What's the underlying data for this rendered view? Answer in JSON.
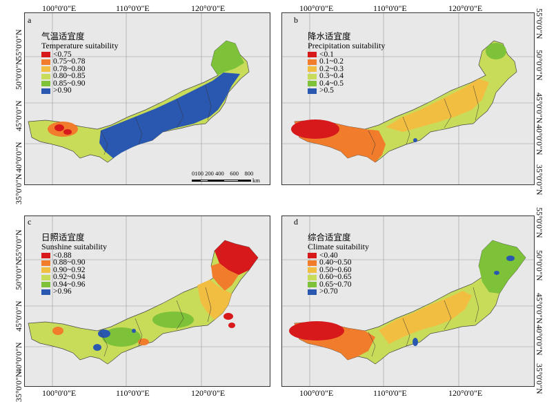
{
  "longitude_labels": [
    "100°0'0\"E",
    "110°0'0\"E",
    "120°0'0\"E"
  ],
  "latitude_labels": [
    "35°0'0\"N",
    "40°0'0\"N",
    "45°0'0\"N",
    "50°0'0\"N",
    "55°0'0\"N"
  ],
  "panels": [
    {
      "id": "a",
      "title_cn": "气温适宜度",
      "title_en": "Temperature suitability",
      "classes": [
        {
          "label": "<0.75",
          "color": "#d7191c"
        },
        {
          "label": "0.75~0.78",
          "color": "#f07c2c"
        },
        {
          "label": "0.78~0.80",
          "color": "#f2be42"
        },
        {
          "label": "0.80~0.85",
          "color": "#c9dc5a"
        },
        {
          "label": "0.85~0.90",
          "color": "#7ec23a"
        },
        {
          "label": ">0.90",
          "color": "#2a58b0"
        }
      ],
      "scale_numbers": "0100 200 400    600    800",
      "scale_unit": "km"
    },
    {
      "id": "b",
      "title_cn": "降水适宜度",
      "title_en": "Precipitation suitability",
      "classes": [
        {
          "label": "<0.1",
          "color": "#d7191c"
        },
        {
          "label": "0.1~0.2",
          "color": "#f07c2c"
        },
        {
          "label": "0.2~0.3",
          "color": "#f2be42"
        },
        {
          "label": "0.3~0.4",
          "color": "#c9dc5a"
        },
        {
          "label": "0.4~0.5",
          "color": "#7ec23a"
        },
        {
          "label": ">0.5",
          "color": "#2a58b0"
        }
      ]
    },
    {
      "id": "c",
      "title_cn": "日照适宜度",
      "title_en": "Sunshine suitability",
      "classes": [
        {
          "label": "<0.88",
          "color": "#d7191c"
        },
        {
          "label": "0.88~0.90",
          "color": "#f07c2c"
        },
        {
          "label": "0.90~0.92",
          "color": "#f2be42"
        },
        {
          "label": "0.92~0.94",
          "color": "#c9dc5a"
        },
        {
          "label": "0.94~0.96",
          "color": "#7ec23a"
        },
        {
          "label": ">0.96",
          "color": "#2a58b0"
        }
      ]
    },
    {
      "id": "d",
      "title_cn": "综合适宜度",
      "title_en": "Climate suitability",
      "classes": [
        {
          "label": "<0.40",
          "color": "#d7191c"
        },
        {
          "label": "0.40~0.50",
          "color": "#f07c2c"
        },
        {
          "label": "0.50~0.60",
          "color": "#f2be42"
        },
        {
          "label": "0.60~0.65",
          "color": "#c9dc5a"
        },
        {
          "label": "0.65~0.70",
          "color": "#7ec23a"
        },
        {
          "label": ">0.70",
          "color": "#2a58b0"
        }
      ]
    }
  ]
}
